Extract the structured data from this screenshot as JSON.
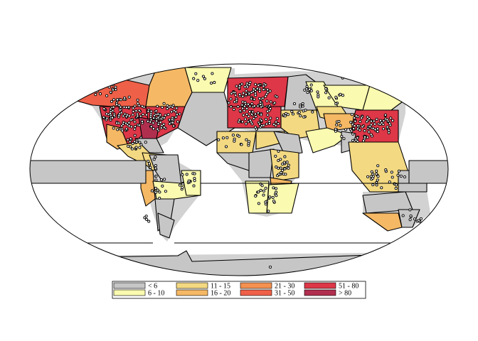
{
  "map": {
    "projection": "Robinson-like oval world map",
    "legend": {
      "items": [
        {
          "label": "< 6",
          "color": "#c6c6c6"
        },
        {
          "label": "6 - 10",
          "color": "#fafab0"
        },
        {
          "label": "11 - 15",
          "color": "#f3d982"
        },
        {
          "label": "16 - 20",
          "color": "#f5b864"
        },
        {
          "label": "21 - 30",
          "color": "#f49150"
        },
        {
          "label": "31 - 50",
          "color": "#ef6048"
        },
        {
          "label": "51 - 80",
          "color": "#dd3748"
        },
        {
          "label": "> 80",
          "color": "#b02f4f"
        }
      ]
    },
    "region_classes": [
      "< 6",
      "< 6",
      "< 6",
      "< 6",
      "< 6",
      "< 6",
      "< 6",
      "< 6",
      "< 6",
      "< 6",
      "< 6",
      "6 - 10",
      "6 - 10",
      "6 - 10",
      "6 - 10",
      "6 - 10",
      "6 - 10",
      "6 - 10",
      "6 - 10",
      "11 - 15",
      "11 - 15",
      "11 - 15",
      "11 - 15",
      "11 - 15",
      "11 - 15",
      "11 - 15",
      "16 - 20",
      "16 - 20",
      "16 - 20",
      "16 - 20",
      "16 - 20",
      "16 - 20",
      "21 - 30",
      "21 - 30",
      "21 - 30",
      "31 - 50",
      "31 - 50",
      "31 - 50",
      "51 - 80",
      "51 - 80",
      "51 - 80",
      "51 - 80",
      "> 80",
      "> 80"
    ]
  }
}
